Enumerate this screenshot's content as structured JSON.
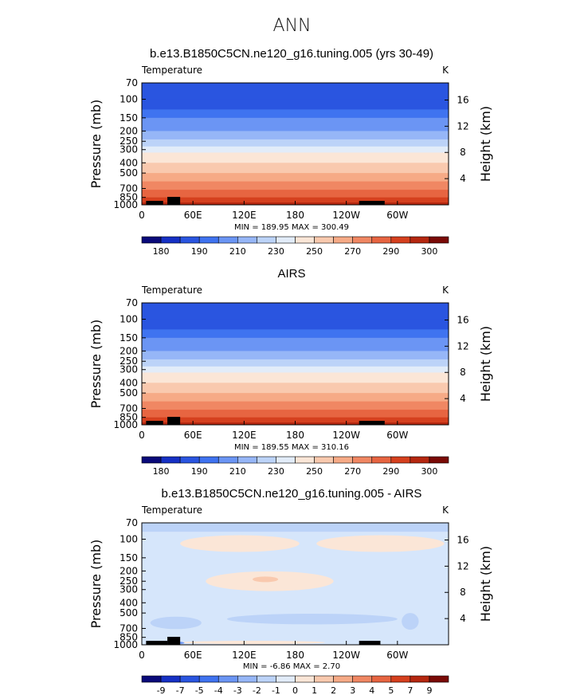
{
  "page_title": "ANN",
  "chart_data": [
    {
      "type": "heatmap",
      "title": "b.e13.B1850C5CN.ne120_g16.tuning.005 (yrs 30-49)",
      "variable": "Temperature",
      "units": "K",
      "ylabel": "Pressure (mb)",
      "ylabel_right": "Height (km)",
      "pressure_ticks": [
        "70",
        "100",
        "150",
        "200",
        "250",
        "300",
        "400",
        "500",
        "700",
        "850",
        "1000"
      ],
      "height_ticks": [
        "16",
        "12",
        "8",
        "4"
      ],
      "x_ticks": [
        "0",
        "60E",
        "120E",
        "180",
        "120W",
        "60W"
      ],
      "stats": "MIN = 189.95   MAX = 300.49",
      "min": 189.95,
      "max": 300.49,
      "colorbar": {
        "labels": [
          "180",
          "190",
          "210",
          "230",
          "250",
          "270",
          "290",
          "300"
        ],
        "colors": [
          "#0a0a7a",
          "#1630c4",
          "#2a55e0",
          "#3f73f0",
          "#6b95f4",
          "#96b6f7",
          "#bcd3f8",
          "#e2ecf9",
          "#fbe6d7",
          "#f9c9ae",
          "#f6aa86",
          "#f08763",
          "#e76541",
          "#d5401e",
          "#b52710",
          "#7a0a06"
        ]
      },
      "bands": [
        {
          "pressure": 70,
          "color": "#2a55e0"
        },
        {
          "pressure": 100,
          "color": "#2a55e0"
        },
        {
          "pressure": 125,
          "color": "#3f73f0"
        },
        {
          "pressure": 150,
          "color": "#6b95f4"
        },
        {
          "pressure": 200,
          "color": "#96b6f7"
        },
        {
          "pressure": 240,
          "color": "#bcd3f8"
        },
        {
          "pressure": 280,
          "color": "#e2ecf9"
        },
        {
          "pressure": 320,
          "color": "#fbe6d7"
        },
        {
          "pressure": 400,
          "color": "#f9c9ae"
        },
        {
          "pressure": 500,
          "color": "#f6aa86"
        },
        {
          "pressure": 600,
          "color": "#f08763"
        },
        {
          "pressure": 720,
          "color": "#e76541"
        },
        {
          "pressure": 850,
          "color": "#d5401e"
        },
        {
          "pressure": 950,
          "color": "#b52710"
        }
      ]
    },
    {
      "type": "heatmap",
      "title": "AIRS",
      "variable": "Temperature",
      "units": "K",
      "ylabel": "Pressure (mb)",
      "ylabel_right": "Height (km)",
      "pressure_ticks": [
        "70",
        "100",
        "150",
        "200",
        "250",
        "300",
        "400",
        "500",
        "700",
        "850",
        "1000"
      ],
      "height_ticks": [
        "16",
        "12",
        "8",
        "4"
      ],
      "x_ticks": [
        "0",
        "60E",
        "120E",
        "180",
        "120W",
        "60W"
      ],
      "stats": "MIN = 189.55   MAX = 310.16",
      "min": 189.55,
      "max": 310.16,
      "colorbar": {
        "labels": [
          "180",
          "190",
          "210",
          "230",
          "250",
          "270",
          "290",
          "300"
        ],
        "colors": [
          "#0a0a7a",
          "#1630c4",
          "#2a55e0",
          "#3f73f0",
          "#6b95f4",
          "#96b6f7",
          "#bcd3f8",
          "#e2ecf9",
          "#fbe6d7",
          "#f9c9ae",
          "#f6aa86",
          "#f08763",
          "#e76541",
          "#d5401e",
          "#b52710",
          "#7a0a06"
        ]
      },
      "bands": [
        {
          "pressure": 70,
          "color": "#2a55e0"
        },
        {
          "pressure": 100,
          "color": "#2a55e0"
        },
        {
          "pressure": 125,
          "color": "#3f73f0"
        },
        {
          "pressure": 150,
          "color": "#6b95f4"
        },
        {
          "pressure": 200,
          "color": "#96b6f7"
        },
        {
          "pressure": 240,
          "color": "#bcd3f8"
        },
        {
          "pressure": 280,
          "color": "#e2ecf9"
        },
        {
          "pressure": 320,
          "color": "#fbe6d7"
        },
        {
          "pressure": 400,
          "color": "#f9c9ae"
        },
        {
          "pressure": 500,
          "color": "#f6aa86"
        },
        {
          "pressure": 600,
          "color": "#f08763"
        },
        {
          "pressure": 720,
          "color": "#e76541"
        },
        {
          "pressure": 850,
          "color": "#d5401e"
        },
        {
          "pressure": 950,
          "color": "#b52710"
        }
      ]
    },
    {
      "type": "heatmap",
      "title": "b.e13.B1850C5CN.ne120_g16.tuning.005 - AIRS",
      "variable": "Temperature",
      "units": "K",
      "ylabel": "Pressure (mb)",
      "ylabel_right": "Height (km)",
      "pressure_ticks": [
        "70",
        "100",
        "150",
        "200",
        "250",
        "300",
        "400",
        "500",
        "700",
        "850",
        "1000"
      ],
      "height_ticks": [
        "16",
        "12",
        "8",
        "4"
      ],
      "x_ticks": [
        "0",
        "60E",
        "120E",
        "180",
        "120W",
        "60W"
      ],
      "stats": "MIN =  -6.86   MAX =   2.70",
      "min": -6.86,
      "max": 2.7,
      "colorbar": {
        "labels": [
          "-9",
          "-7",
          "-5",
          "-4",
          "-3",
          "-2",
          "-1",
          "0",
          "1",
          "2",
          "3",
          "4",
          "5",
          "7",
          "9"
        ],
        "colors": [
          "#0a0a7a",
          "#1630c4",
          "#2a55e0",
          "#3f73f0",
          "#6b95f4",
          "#96b6f7",
          "#bcd3f8",
          "#e2ecf9",
          "#fbe6d7",
          "#f9c9ae",
          "#f6aa86",
          "#f08763",
          "#e76541",
          "#d5401e",
          "#b52710",
          "#7a0a06"
        ]
      },
      "background_color": "#d6e6fb",
      "regions": [
        {
          "kind": "band",
          "p_top": 70,
          "p_bottom": 85,
          "color": "#bcd3f8"
        },
        {
          "kind": "blob",
          "lon": 115,
          "p": 110,
          "rx_deg": 70,
          "rp": 22,
          "color": "#fbe6d7"
        },
        {
          "kind": "blob",
          "lon": 280,
          "p": 110,
          "rx_deg": 75,
          "rp": 22,
          "color": "#fbe6d7"
        },
        {
          "kind": "blob",
          "lon": 150,
          "p": 250,
          "rx_deg": 75,
          "rp": 60,
          "color": "#fbe6d7"
        },
        {
          "kind": "blob",
          "lon": 145,
          "p": 240,
          "rx_deg": 15,
          "rp": 15,
          "color": "#f9c9ae"
        },
        {
          "kind": "blob",
          "lon": 200,
          "p": 570,
          "rx_deg": 100,
          "rp": 70,
          "color": "#bcd3f8"
        },
        {
          "kind": "blob",
          "lon": 40,
          "p": 620,
          "rx_deg": 30,
          "rp": 90,
          "color": "#bcd3f8"
        },
        {
          "kind": "blob",
          "lon": 315,
          "p": 600,
          "rx_deg": 10,
          "rp": 120,
          "color": "#bcd3f8"
        },
        {
          "kind": "blob",
          "lon": 130,
          "p": 950,
          "rx_deg": 85,
          "rp": 35,
          "color": "#fbe6d7"
        },
        {
          "kind": "blob",
          "lon": 30,
          "p": 960,
          "rx_deg": 20,
          "rp": 40,
          "color": "#6b95f4"
        }
      ]
    }
  ]
}
